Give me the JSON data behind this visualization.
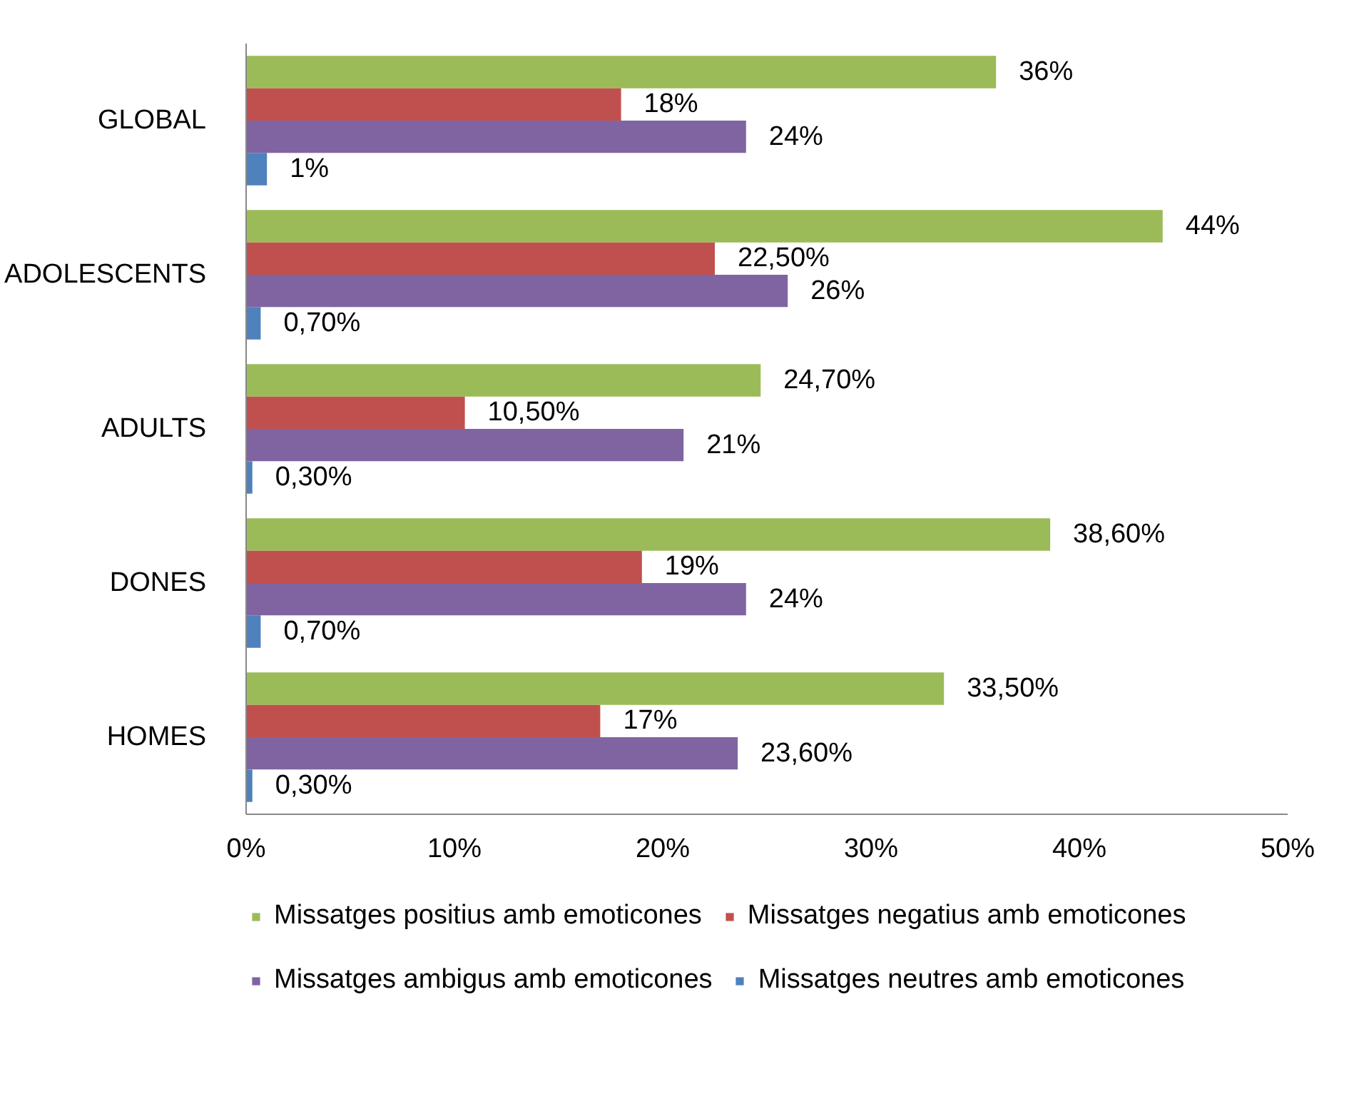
{
  "chart_data": {
    "type": "bar",
    "orientation": "horizontal",
    "categories": [
      "GLOBAL",
      "ADOLESCENTS",
      "ADULTS",
      "DONES",
      "HOMES"
    ],
    "series": [
      {
        "name": "Missatges positius amb emoticones",
        "color": "#9bbb59",
        "values": [
          36,
          44,
          24.7,
          38.6,
          33.5
        ],
        "value_labels": [
          "36%",
          "44%",
          "24,70%",
          "38,60%",
          "33,50%"
        ]
      },
      {
        "name": "Missatges negatius amb emoticones",
        "color": "#c0504d",
        "values": [
          18,
          22.5,
          10.5,
          19,
          17
        ],
        "value_labels": [
          "18%",
          "22,50%",
          "10,50%",
          "19%",
          "17%"
        ]
      },
      {
        "name": "Missatges ambigus amb emoticones",
        "color": "#8064a2",
        "values": [
          24,
          26,
          21,
          24,
          23.6
        ],
        "value_labels": [
          "24%",
          "26%",
          "21%",
          "24%",
          "23,60%"
        ]
      },
      {
        "name": "Missatges neutres amb emoticones",
        "color": "#4f81bd",
        "values": [
          1,
          0.7,
          0.3,
          0.7,
          0.3
        ],
        "value_labels": [
          "1%",
          "0,70%",
          "0,30%",
          "0,70%",
          "0,30%"
        ]
      }
    ],
    "xlim": [
      0,
      50
    ],
    "xticks": [
      {
        "value": 0,
        "label": "0%"
      },
      {
        "value": 10,
        "label": "10%"
      },
      {
        "value": 20,
        "label": "20%"
      },
      {
        "value": 30,
        "label": "30%"
      },
      {
        "value": 40,
        "label": "40%"
      },
      {
        "value": 50,
        "label": "50%"
      }
    ],
    "grid": false,
    "legend": "bottom"
  }
}
